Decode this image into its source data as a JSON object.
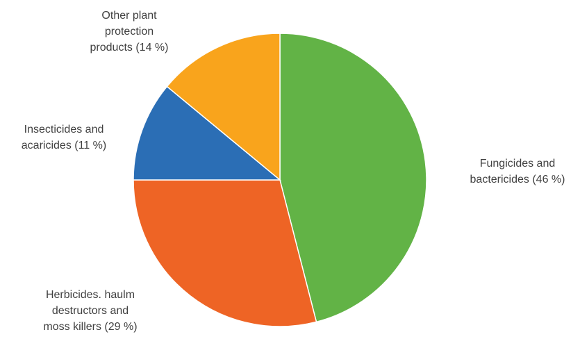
{
  "chart_data": {
    "type": "pie",
    "title": "",
    "start_angle_deg": 0,
    "direction": "clockwise",
    "slices": [
      {
        "label_lines": [
          "Fungicides and",
          "bactericides (46 %)"
        ],
        "value": 46,
        "color": "#62B346"
      },
      {
        "label_lines": [
          "Herbicides. haulm",
          "destructors and",
          "moss killers (29 %)"
        ],
        "value": 29,
        "color": "#EE6425"
      },
      {
        "label_lines": [
          "Insecticides and",
          "acaricides (11 %)"
        ],
        "value": 11,
        "color": "#2B6EB5"
      },
      {
        "label_lines": [
          "Other plant",
          "protection",
          "products (14 %)"
        ],
        "value": 14,
        "color": "#F9A41C"
      }
    ]
  }
}
